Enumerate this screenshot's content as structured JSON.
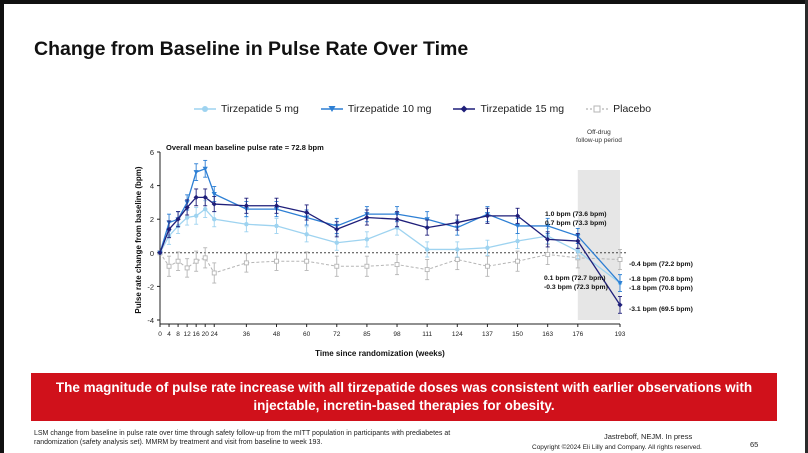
{
  "slide": {
    "title": "Change from Baseline in Pulse Rate Over Time",
    "banner": "The magnitude of pulse rate increase with all tirzepatide doses was consistent with earlier observations with injectable, incretin-based therapies for obesity.",
    "footnote": "LSM change from baseline in pulse rate over time through safety follow-up from the mITT population in participants with prediabetes at randomization (safety analysis set). MMRM by treatment and visit from baseline to week 193.",
    "reference": "Jastreboff, NEJM. In press",
    "copyright": "Copyright ©2024 Eli Lilly and Company. All rights reserved.",
    "page_number": "65"
  },
  "colors": {
    "tirzepatide_5": "#9ed3f0",
    "tirzepatide_10": "#2d7fd4",
    "tirzepatide_15": "#1f1f7a",
    "placebo": "#b5b5b5",
    "banner": "#d0111b"
  },
  "chart_data": {
    "type": "line",
    "annotation_top": "Overall mean baseline pulse rate = 72.8 bpm",
    "offdrug_label": "Off-drug follow-up period",
    "xlabel": "Time since randomization (weeks)",
    "ylabel": "Pulse rate change from baseline (bpm)",
    "ylim": [
      -4,
      6
    ],
    "yticks": [
      -4,
      -2,
      0,
      2,
      4,
      6
    ],
    "x": [
      0,
      4,
      8,
      12,
      16,
      20,
      24,
      36,
      48,
      60,
      72,
      85,
      98,
      111,
      124,
      137,
      150,
      163,
      176,
      193
    ],
    "x_tick_labels": [
      "0",
      "4",
      "8",
      "12",
      "16",
      "20",
      "24",
      "36",
      "48",
      "60",
      "72",
      "85",
      "98",
      "111",
      "124",
      "137",
      "150",
      "163",
      "176",
      "193"
    ],
    "offdrug_range": [
      176,
      193
    ],
    "series": [
      {
        "name": "Tirzepatide 5 mg",
        "marker": "circle",
        "values": [
          0,
          1.0,
          1.6,
          2.1,
          2.2,
          2.6,
          2.0,
          1.7,
          1.6,
          1.1,
          0.6,
          0.8,
          1.5,
          0.2,
          0.2,
          0.3,
          0.7,
          1.0,
          0.1,
          -1.8
        ],
        "errors": [
          0,
          0.5,
          0.45,
          0.45,
          0.5,
          0.5,
          0.45,
          0.45,
          0.45,
          0.45,
          0.45,
          0.45,
          0.45,
          0.45,
          0.45,
          0.45,
          0.45,
          0.45,
          0.45,
          0.5
        ]
      },
      {
        "name": "Tirzepatide 10 mg",
        "marker": "triangle-down",
        "values": [
          0,
          1.8,
          2.0,
          3.0,
          4.8,
          5.0,
          3.5,
          2.6,
          2.6,
          2.1,
          1.6,
          2.3,
          2.3,
          2.0,
          1.5,
          2.3,
          1.6,
          1.6,
          1.0,
          -1.8
        ],
        "errors": [
          0,
          0.5,
          0.45,
          0.45,
          0.5,
          0.5,
          0.45,
          0.45,
          0.45,
          0.45,
          0.45,
          0.45,
          0.45,
          0.45,
          0.45,
          0.45,
          0.45,
          0.45,
          0.45,
          0.5
        ]
      },
      {
        "name": "Tirzepatide 15 mg",
        "marker": "diamond",
        "values": [
          0,
          1.4,
          2.0,
          2.7,
          3.3,
          3.3,
          2.9,
          2.8,
          2.8,
          2.4,
          1.4,
          2.1,
          2.0,
          1.5,
          1.8,
          2.2,
          2.2,
          0.8,
          0.7,
          -3.1
        ],
        "errors": [
          0,
          0.5,
          0.45,
          0.45,
          0.5,
          0.5,
          0.45,
          0.45,
          0.45,
          0.45,
          0.45,
          0.45,
          0.45,
          0.45,
          0.45,
          0.45,
          0.45,
          0.45,
          0.45,
          0.5
        ]
      },
      {
        "name": "Placebo",
        "marker": "square-open",
        "values": [
          0,
          -0.8,
          -0.5,
          -0.9,
          -0.5,
          -0.3,
          -1.2,
          -0.6,
          -0.5,
          -0.5,
          -0.8,
          -0.8,
          -0.7,
          -1.0,
          -0.4,
          -0.8,
          -0.5,
          -0.1,
          -0.3,
          -0.4
        ],
        "errors": [
          0,
          0.6,
          0.55,
          0.55,
          0.6,
          0.6,
          0.6,
          0.55,
          0.55,
          0.55,
          0.6,
          0.6,
          0.6,
          0.6,
          0.6,
          0.6,
          0.6,
          0.6,
          0.6,
          0.6
        ]
      }
    ],
    "annotations": [
      {
        "text": "1.0 bpm (73.6 bpm)",
        "x": 176,
        "y": 1.0,
        "side": "left"
      },
      {
        "text": "0.7 bpm (73.3 bpm)",
        "x": 176,
        "y": 0.7,
        "side": "left"
      },
      {
        "text": "0.1 bpm (72.7 bpm)",
        "x": 176,
        "y": 0.1,
        "side": "left"
      },
      {
        "text": "-0.3 bpm (72.3 bpm)",
        "x": 176,
        "y": -0.3,
        "side": "left"
      },
      {
        "text": "-0.4 bpm (72.2 bpm)",
        "x": 193,
        "y": -0.4,
        "side": "right"
      },
      {
        "text": "-1.8 bpm (70.8 bpm)",
        "x": 193,
        "y": -1.8,
        "side": "right"
      },
      {
        "text": "-1.8 bpm (70.8 bpm)",
        "x": 193,
        "y": -1.8,
        "side": "right"
      },
      {
        "text": "-3.1 bpm (69.5 bpm)",
        "x": 193,
        "y": -3.1,
        "side": "right"
      }
    ]
  }
}
